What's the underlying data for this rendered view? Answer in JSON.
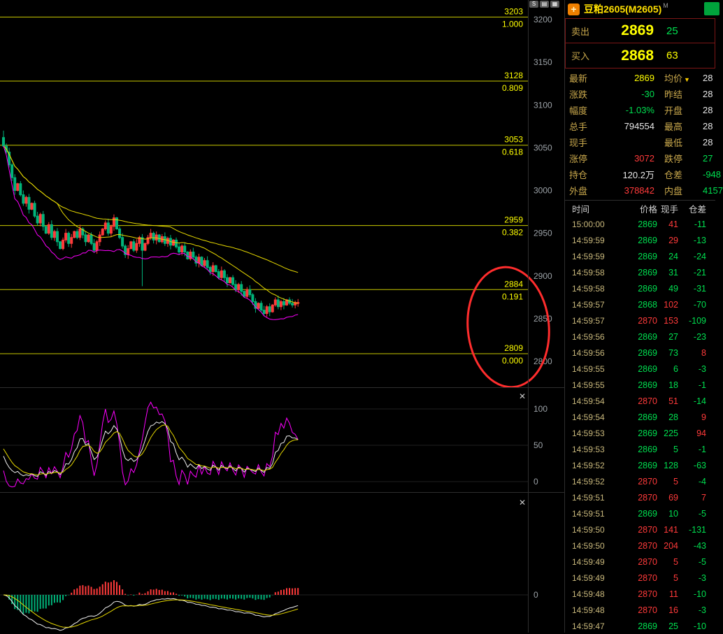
{
  "window": {
    "top_icons": [
      "S",
      "▤",
      "▦"
    ]
  },
  "chart_ui": {
    "close_icon": "✕"
  },
  "colors": {
    "red": "#ff3a3a",
    "green": "#00e050",
    "yellow": "#ffff00",
    "white": "#e8e8e8",
    "khaki": "#c9a84c",
    "cyan": "#00d8d8"
  },
  "quote_panel": {
    "plus_icon": "+",
    "title": "豆粕2605(M2605)",
    "title_sup": "M",
    "sell": {
      "label": "卖出",
      "price": "2869",
      "lots": "25"
    },
    "buy": {
      "label": "买入",
      "price": "2868",
      "lots": "63"
    },
    "stats": [
      {
        "l1": "最新",
        "v1": "2869",
        "c1": "yellow",
        "l2": "均价",
        "icon": "▼",
        "v2": "28",
        "c2": "white"
      },
      {
        "l1": "涨跌",
        "v1": "-30",
        "c1": "green",
        "l2": "昨结",
        "v2": "28",
        "c2": "white"
      },
      {
        "l1": "幅度",
        "v1": "-1.03%",
        "c1": "green",
        "l2": "开盘",
        "v2": "28",
        "c2": "white"
      },
      {
        "l1": "总手",
        "v1": "794554",
        "c1": "white",
        "l2": "最高",
        "v2": "28",
        "c2": "white"
      },
      {
        "l1": "现手",
        "v1": "",
        "c1": "white",
        "l2": "最低",
        "v2": "28",
        "c2": "white"
      },
      {
        "l1": "涨停",
        "v1": "3072",
        "c1": "red",
        "l2": "跌停",
        "v2": "27",
        "c2": "green"
      },
      {
        "l1": "持仓",
        "v1": "120.2万",
        "c1": "white",
        "l2": "仓差",
        "v2": "-948",
        "c2": "green"
      },
      {
        "l1": "外盘",
        "v1": "378842",
        "c1": "red",
        "l2": "内盘",
        "v2": "4157",
        "c2": "green"
      }
    ],
    "tick_table": {
      "headers": [
        "时间",
        "价格",
        "现手",
        "仓差"
      ],
      "rows": [
        [
          "15:00:00",
          "2869",
          "green",
          "41",
          "red",
          "-11",
          "green"
        ],
        [
          "14:59:59",
          "2869",
          "green",
          "29",
          "red",
          "-13",
          "green"
        ],
        [
          "14:59:59",
          "2869",
          "green",
          "24",
          "green",
          "-24",
          "green"
        ],
        [
          "14:59:58",
          "2869",
          "green",
          "31",
          "green",
          "-21",
          "green"
        ],
        [
          "14:59:58",
          "2869",
          "green",
          "49",
          "green",
          "-31",
          "green"
        ],
        [
          "14:59:57",
          "2868",
          "green",
          "102",
          "red",
          "-70",
          "green"
        ],
        [
          "14:59:57",
          "2870",
          "red",
          "153",
          "red",
          "-109",
          "green"
        ],
        [
          "14:59:56",
          "2869",
          "green",
          "27",
          "green",
          "-23",
          "green"
        ],
        [
          "14:59:56",
          "2869",
          "green",
          "73",
          "green",
          "8",
          "red"
        ],
        [
          "14:59:55",
          "2869",
          "green",
          "6",
          "green",
          "-3",
          "green"
        ],
        [
          "14:59:55",
          "2869",
          "green",
          "18",
          "green",
          "-1",
          "green"
        ],
        [
          "14:59:54",
          "2870",
          "red",
          "51",
          "red",
          "-14",
          "green"
        ],
        [
          "14:59:54",
          "2869",
          "green",
          "28",
          "green",
          "9",
          "red"
        ],
        [
          "14:59:53",
          "2869",
          "green",
          "225",
          "green",
          "94",
          "red"
        ],
        [
          "14:59:53",
          "2869",
          "green",
          "5",
          "green",
          "-1",
          "green"
        ],
        [
          "14:59:52",
          "2869",
          "green",
          "128",
          "green",
          "-63",
          "green"
        ],
        [
          "14:59:52",
          "2870",
          "red",
          "5",
          "red",
          "-4",
          "green"
        ],
        [
          "14:59:51",
          "2870",
          "red",
          "69",
          "red",
          "7",
          "red"
        ],
        [
          "14:59:51",
          "2869",
          "green",
          "10",
          "green",
          "-5",
          "green"
        ],
        [
          "14:59:50",
          "2870",
          "red",
          "141",
          "red",
          "-131",
          "green"
        ],
        [
          "14:59:50",
          "2870",
          "red",
          "204",
          "red",
          "-43",
          "green"
        ],
        [
          "14:59:49",
          "2870",
          "red",
          "5",
          "red",
          "-5",
          "green"
        ],
        [
          "14:59:49",
          "2870",
          "red",
          "5",
          "red",
          "-3",
          "green"
        ],
        [
          "14:59:48",
          "2870",
          "red",
          "11",
          "red",
          "-10",
          "green"
        ],
        [
          "14:59:48",
          "2870",
          "red",
          "16",
          "red",
          "-3",
          "green"
        ],
        [
          "14:59:47",
          "2869",
          "green",
          "25",
          "green",
          "-10",
          "green"
        ]
      ]
    }
  },
  "chart_data": {
    "type": "candlestick",
    "title": "豆粕2605(M2605)",
    "price_axis": [
      3200,
      3150,
      3100,
      3050,
      3000,
      2950,
      2900,
      2850,
      2800
    ],
    "fib_levels": [
      {
        "price": "3203",
        "ratio": "1.000"
      },
      {
        "price": "3128",
        "ratio": "0.809"
      },
      {
        "price": "3053",
        "ratio": "0.618"
      },
      {
        "price": "2959",
        "ratio": "0.382"
      },
      {
        "price": "2884",
        "ratio": "0.191"
      },
      {
        "price": "2809",
        "ratio": "0.000"
      }
    ],
    "closes": [
      3052,
      3045,
      3030,
      3015,
      3000,
      3008,
      2995,
      2985,
      2992,
      2978,
      2985,
      2970,
      2962,
      2972,
      2958,
      2950,
      2960,
      2945,
      2952,
      2940,
      2932,
      2942,
      2950,
      2938,
      2945,
      2952,
      2945,
      2955,
      2948,
      2940,
      2948,
      2938,
      2930,
      2940,
      2948,
      2955,
      2962,
      2950,
      2958,
      2968,
      2955,
      2945,
      2935,
      2925,
      2932,
      2940,
      2930,
      2938,
      2945,
      2930,
      2938,
      2945,
      2950,
      2942,
      2948,
      2940,
      2946,
      2938,
      2944,
      2936,
      2942,
      2934,
      2928,
      2935,
      2928,
      2920,
      2928,
      2922,
      2915,
      2922,
      2912,
      2918,
      2910,
      2905,
      2912,
      2905,
      2898,
      2906,
      2898,
      2892,
      2898,
      2890,
      2884,
      2890,
      2882,
      2876,
      2884,
      2878,
      2870,
      2862,
      2868,
      2860,
      2856,
      2864,
      2858,
      2866,
      2872,
      2864,
      2870,
      2866,
      2872,
      2868,
      2866,
      2869,
      2869
    ],
    "last_close": 2869,
    "oscillator_axis": [
      100,
      50,
      0
    ],
    "macd_axis": [
      0
    ],
    "annotation": {
      "shape": "ellipse",
      "color": "#ff2d2d"
    },
    "colors": {
      "up": "#ff3a3a",
      "down": "#00b47a",
      "ma_yellow": "#e6d800",
      "ma_magenta": "#ff00ff",
      "fib_line": "#c9c900",
      "fib_text": "#ffff00",
      "axis_text": "#9da3a8",
      "kdj_k": "#f0f0f0",
      "kdj_d": "#e6d800",
      "kdj_j": "#ff00ff",
      "macd_dif": "#f0f0f0",
      "macd_dea": "#e6d800",
      "annotation": "#ff2d2d"
    }
  }
}
